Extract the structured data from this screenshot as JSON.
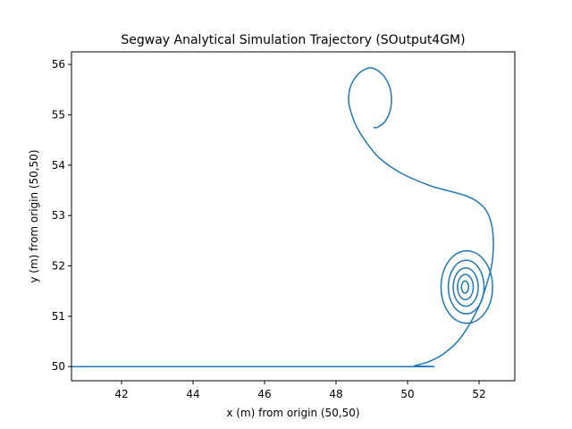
{
  "chart_data": {
    "type": "line",
    "title": "Segway Analytical Simulation Trajectory (SOutput4GM)",
    "xlabel": "x (m) from origin (50,50)",
    "ylabel": "y (m) from origin (50,50)",
    "xlim": [
      40.6,
      53.0
    ],
    "ylim": [
      49.72,
      56.25
    ],
    "xticks": [
      42,
      44,
      46,
      48,
      50,
      52
    ],
    "yticks": [
      50,
      51,
      52,
      53,
      54,
      55,
      56
    ],
    "xtick_labels": [
      "42",
      "44",
      "46",
      "48",
      "50",
      "52"
    ],
    "ytick_labels": [
      "50",
      "51",
      "52",
      "53",
      "54",
      "55",
      "56"
    ],
    "grid": false,
    "series_color": "#1f77b4",
    "series": [
      {
        "x": [
          40.6,
          50.0,
          50.2,
          50.6,
          51.0,
          51.4,
          51.7,
          52.0,
          52.2,
          52.35,
          52.4,
          52.38,
          52.3,
          52.15,
          51.9,
          51.6,
          51.2,
          50.6,
          49.8,
          49.2,
          48.8,
          48.55,
          48.4,
          48.35,
          48.4,
          48.55,
          48.75,
          49.0,
          49.3,
          49.5,
          49.55,
          49.5,
          49.35,
          49.15,
          49.05
        ],
        "y": [
          50.0,
          50.0,
          50.02,
          50.1,
          50.25,
          50.5,
          50.8,
          51.2,
          51.6,
          52.0,
          52.35,
          52.7,
          52.95,
          53.15,
          53.3,
          53.4,
          53.48,
          53.6,
          53.85,
          54.15,
          54.5,
          54.8,
          55.1,
          55.3,
          55.55,
          55.75,
          55.88,
          55.93,
          55.8,
          55.55,
          55.3,
          55.05,
          54.85,
          54.75,
          54.75
        ],
        "spiral": {
          "center": [
            51.6,
            51.58
          ],
          "loops": [
            {
              "rx": 0.72,
              "ry": 0.72
            },
            {
              "rx": 0.5,
              "ry": 0.53
            },
            {
              "rx": 0.35,
              "ry": 0.38
            },
            {
              "rx": 0.22,
              "ry": 0.25
            },
            {
              "rx": 0.1,
              "ry": 0.12
            }
          ]
        }
      }
    ]
  }
}
